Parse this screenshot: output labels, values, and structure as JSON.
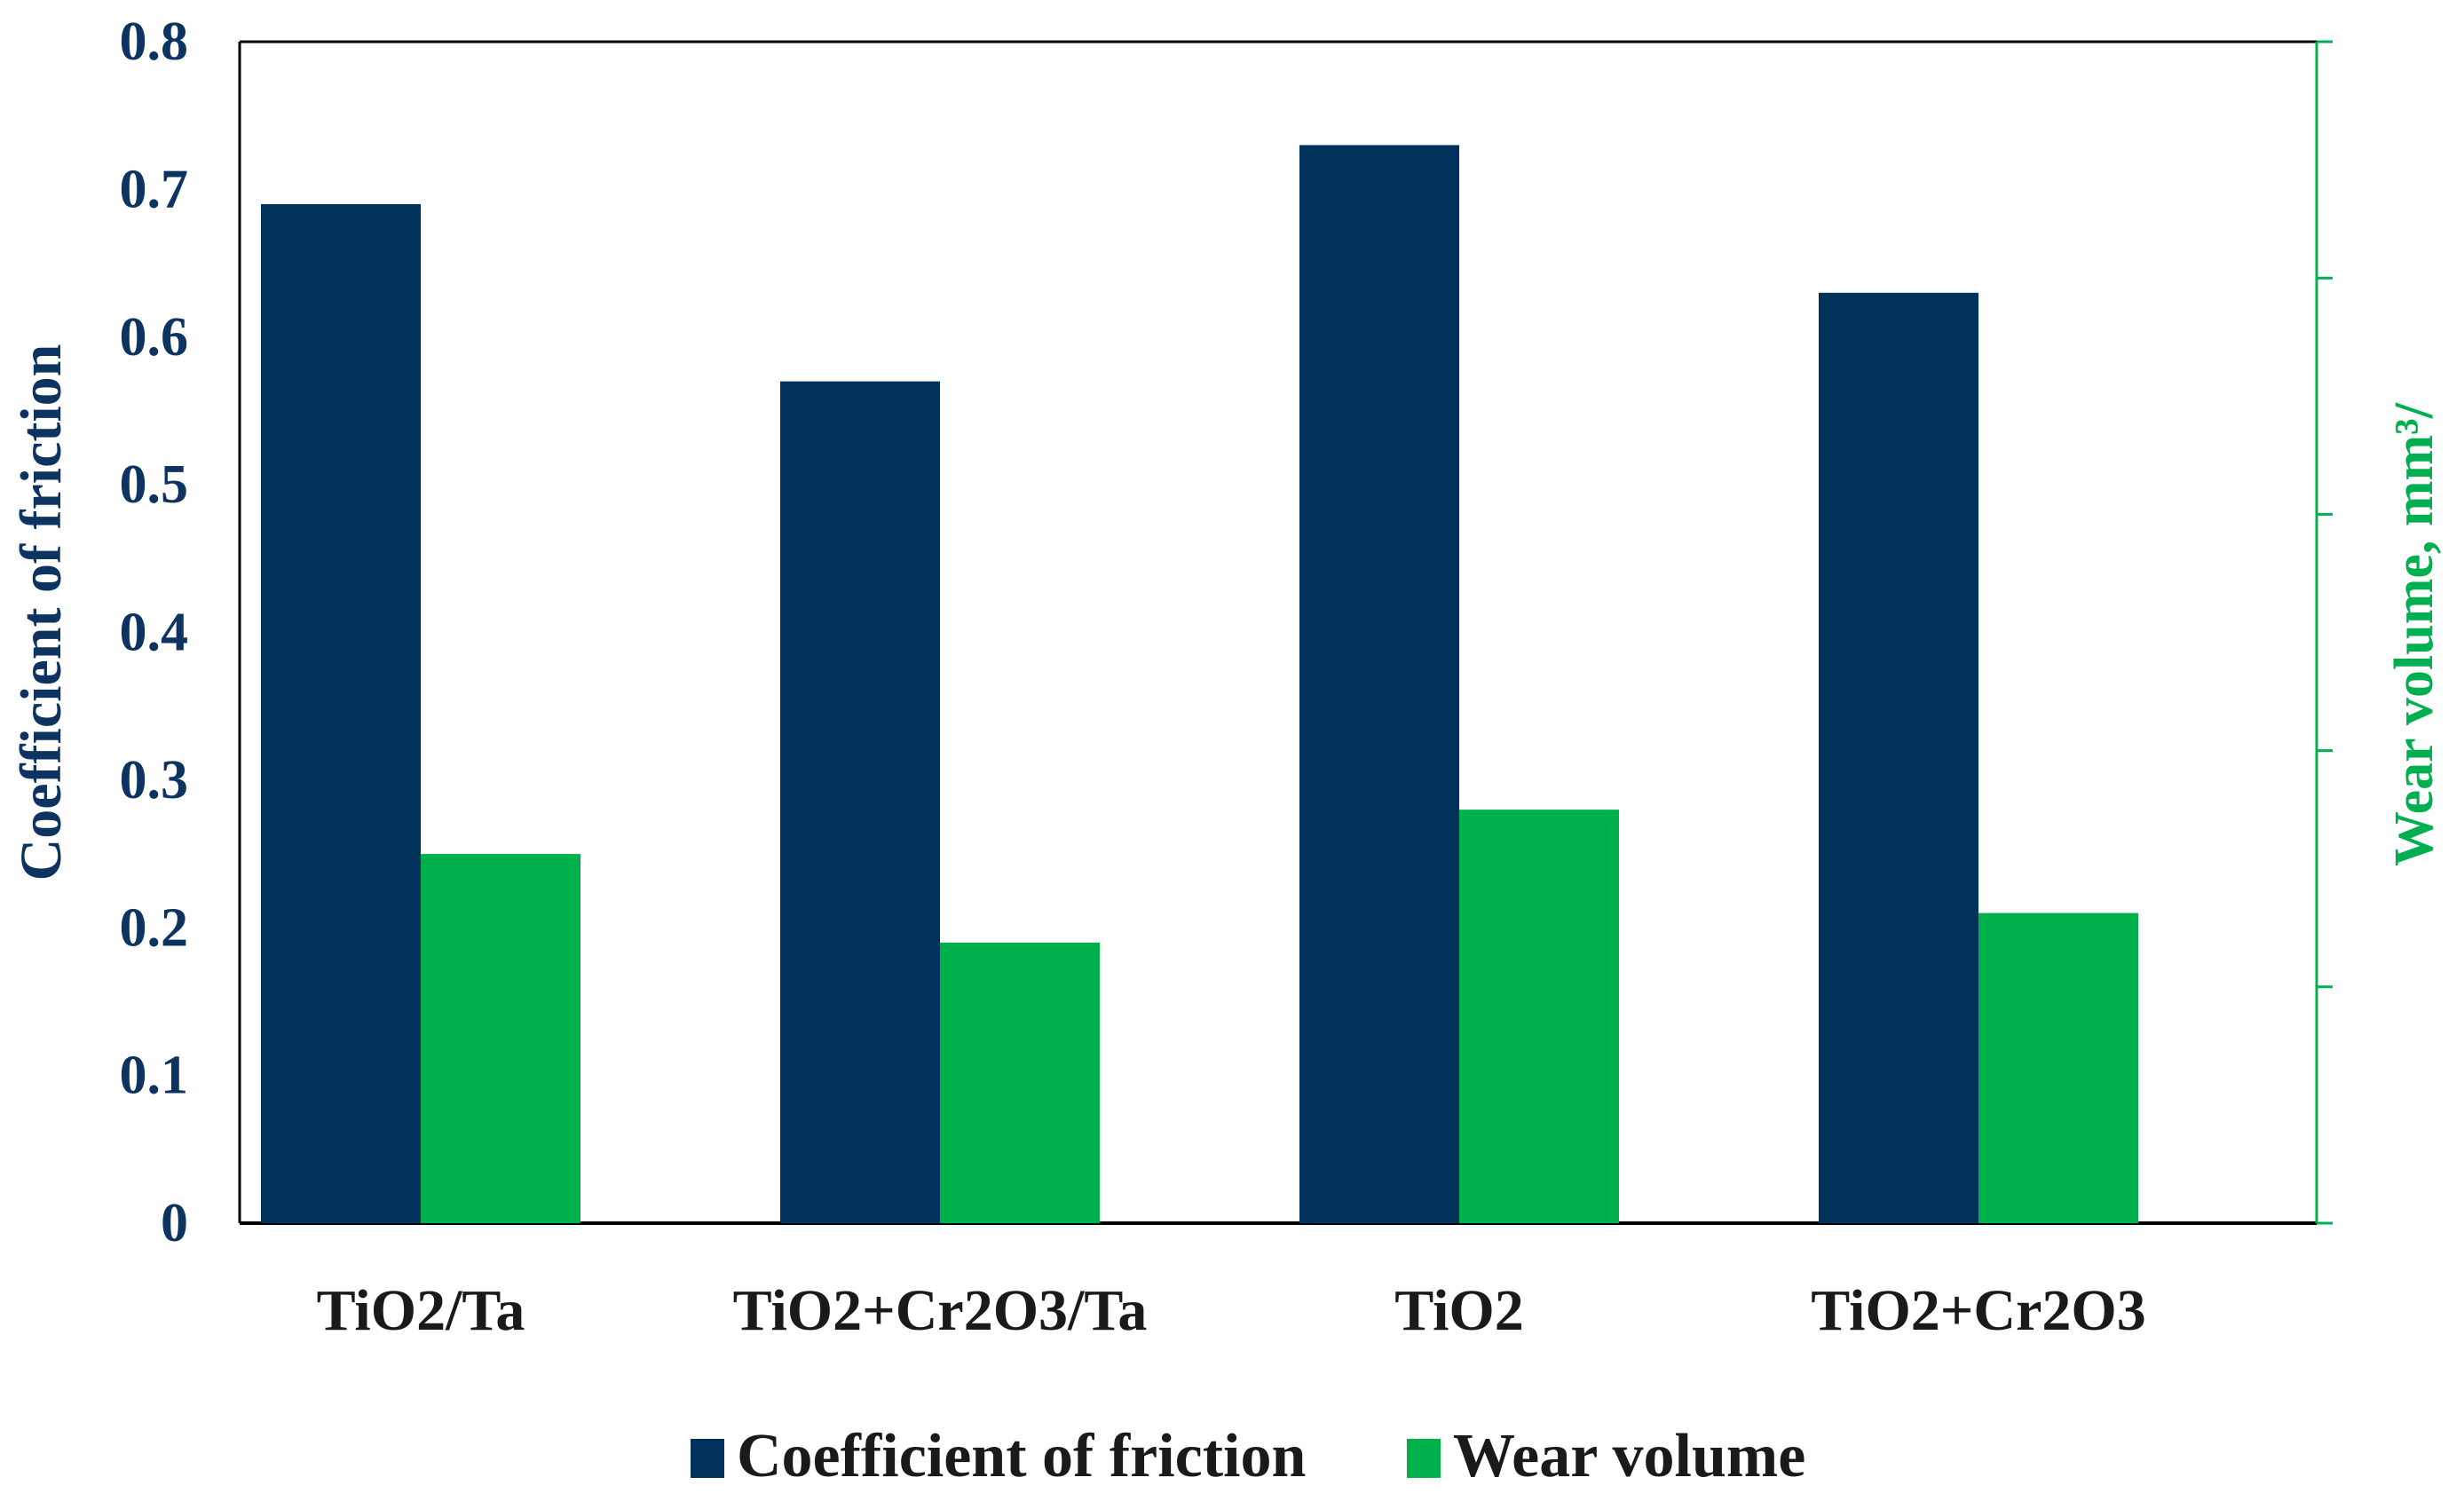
{
  "chart_data": {
    "type": "bar",
    "title": "",
    "categories": [
      "TiO2/Ta",
      "TiO2+Cr2O3/Ta",
      "TiO2",
      "TiO2+Cr2O3"
    ],
    "series": [
      {
        "name": "Coefficient of friction",
        "axis": "left",
        "color": "#01325c",
        "values": [
          0.69,
          0.57,
          0.73,
          0.63
        ]
      },
      {
        "name": "Wear volume",
        "axis": "right",
        "color": "#00b04a",
        "values": [
          0.25,
          0.19,
          0.28,
          0.21
        ]
      }
    ],
    "ylabel": "Coefficient of friction",
    "ylabel_color": "#0d3460",
    "y2label": "Wear volume, mm³/",
    "y2label_color": "#00b050",
    "ylim": [
      0,
      0.8
    ],
    "yticks": [
      "0",
      "0.1",
      "0.2",
      "0.3",
      "0.4",
      "0.5",
      "0.6",
      "0.7",
      "0.8"
    ],
    "y2ticks_count": 5,
    "grid": false,
    "legend_position": "bottom"
  }
}
